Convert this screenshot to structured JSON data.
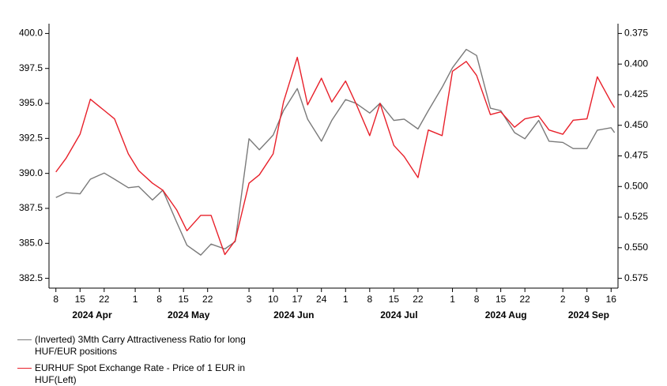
{
  "chart_data": {
    "type": "line",
    "x": [
      "2024-04-08",
      "2024-04-11",
      "2024-04-15",
      "2024-04-18",
      "2024-04-22",
      "2024-04-25",
      "2024-04-29",
      "2024-05-02",
      "2024-05-06",
      "2024-05-09",
      "2024-05-13",
      "2024-05-16",
      "2024-05-20",
      "2024-05-23",
      "2024-05-27",
      "2024-05-30",
      "2024-06-03",
      "2024-06-06",
      "2024-06-10",
      "2024-06-13",
      "2024-06-17",
      "2024-06-20",
      "2024-06-24",
      "2024-06-27",
      "2024-07-01",
      "2024-07-04",
      "2024-07-08",
      "2024-07-11",
      "2024-07-15",
      "2024-07-18",
      "2024-07-22",
      "2024-07-25",
      "2024-07-29",
      "2024-08-01",
      "2024-08-05",
      "2024-08-08",
      "2024-08-12",
      "2024-08-15",
      "2024-08-19",
      "2024-08-22",
      "2024-08-26",
      "2024-08-29",
      "2024-09-02",
      "2024-09-05",
      "2024-09-09",
      "2024-09-12",
      "2024-09-16",
      "2024-09-17"
    ],
    "series": [
      {
        "name": "(Inverted) 3Mth Carry Attractiveness Ratio for long HUF/EUR positions",
        "color": "#7a7a7a",
        "axis": "y2",
        "values": [
          0.509,
          0.505,
          0.506,
          0.494,
          0.489,
          0.494,
          0.501,
          0.5,
          0.511,
          0.503,
          0.529,
          0.548,
          0.556,
          0.547,
          0.551,
          0.545,
          0.461,
          0.47,
          0.458,
          0.438,
          0.42,
          0.445,
          0.463,
          0.446,
          0.429,
          0.432,
          0.44,
          0.432,
          0.446,
          0.445,
          0.453,
          0.438,
          0.419,
          0.403,
          0.388,
          0.393,
          0.436,
          0.438,
          0.456,
          0.461,
          0.446,
          0.463,
          0.464,
          0.469,
          0.469,
          0.454,
          0.452,
          0.456
        ]
      },
      {
        "name": "EURHUF Spot Exchange Rate - Price of 1 EUR in HUF(Left)",
        "color": "#e8202a",
        "values": [
          390.1,
          391.1,
          392.8,
          395.3,
          394.5,
          393.9,
          391.4,
          390.2,
          389.3,
          388.8,
          387.4,
          385.9,
          387.0,
          387.0,
          384.2,
          385.2,
          389.3,
          389.9,
          391.4,
          395.1,
          398.3,
          394.9,
          396.8,
          395.1,
          396.6,
          395.0,
          392.7,
          395.0,
          392.0,
          391.2,
          389.7,
          393.1,
          392.7,
          397.3,
          398.0,
          397.0,
          394.2,
          394.4,
          393.3,
          393.9,
          394.1,
          393.1,
          392.8,
          393.8,
          393.9,
          396.9,
          395.1,
          394.7
        ]
      }
    ],
    "xlim": [
      "2024-04-06",
      "2024-09-18"
    ],
    "xticks": [
      {
        "value": "2024-04-08",
        "label": "8"
      },
      {
        "value": "2024-04-15",
        "label": "15"
      },
      {
        "value": "2024-04-22",
        "label": "22"
      },
      {
        "value": "2024-05-01",
        "label": "1"
      },
      {
        "value": "2024-05-08",
        "label": "8"
      },
      {
        "value": "2024-05-15",
        "label": "15"
      },
      {
        "value": "2024-05-22",
        "label": "22"
      },
      {
        "value": "2024-06-03",
        "label": "3"
      },
      {
        "value": "2024-06-10",
        "label": "10"
      },
      {
        "value": "2024-06-17",
        "label": "17"
      },
      {
        "value": "2024-06-24",
        "label": "24"
      },
      {
        "value": "2024-07-01",
        "label": "1"
      },
      {
        "value": "2024-07-08",
        "label": "8"
      },
      {
        "value": "2024-07-15",
        "label": "15"
      },
      {
        "value": "2024-07-22",
        "label": "22"
      },
      {
        "value": "2024-08-01",
        "label": "1"
      },
      {
        "value": "2024-08-08",
        "label": "8"
      },
      {
        "value": "2024-08-15",
        "label": "15"
      },
      {
        "value": "2024-08-22",
        "label": "22"
      },
      {
        "value": "2024-09-02",
        "label": "2"
      },
      {
        "value": "2024-09-09",
        "label": "9"
      },
      {
        "value": "2024-09-16",
        "label": "16"
      }
    ],
    "x_group_labels": [
      "2024 Apr",
      "2024 May",
      "2024 Jun",
      "2024 Jul",
      "2024 Aug",
      "2024 Sep"
    ],
    "ylim": [
      381.8,
      400.7
    ],
    "yticks": [
      382.5,
      {
        "value": 385,
        "label": "385.0"
      },
      387.5,
      {
        "value": 390,
        "label": "390.0"
      },
      392.5,
      {
        "value": 395,
        "label": "395.0"
      },
      397.5,
      {
        "value": 400,
        "label": "400.0"
      }
    ],
    "y2lim": [
      0.583,
      0.367
    ],
    "y2ticks": [
      0.575,
      {
        "value": 0.55,
        "label": "0.550"
      },
      0.525,
      {
        "value": 0.5,
        "label": "0.500"
      },
      0.475,
      {
        "value": 0.45,
        "label": "0.450"
      },
      0.425,
      {
        "value": 0.4,
        "label": "0.400"
      },
      0.375
    ],
    "grid": false,
    "legend": "bottom-left"
  }
}
